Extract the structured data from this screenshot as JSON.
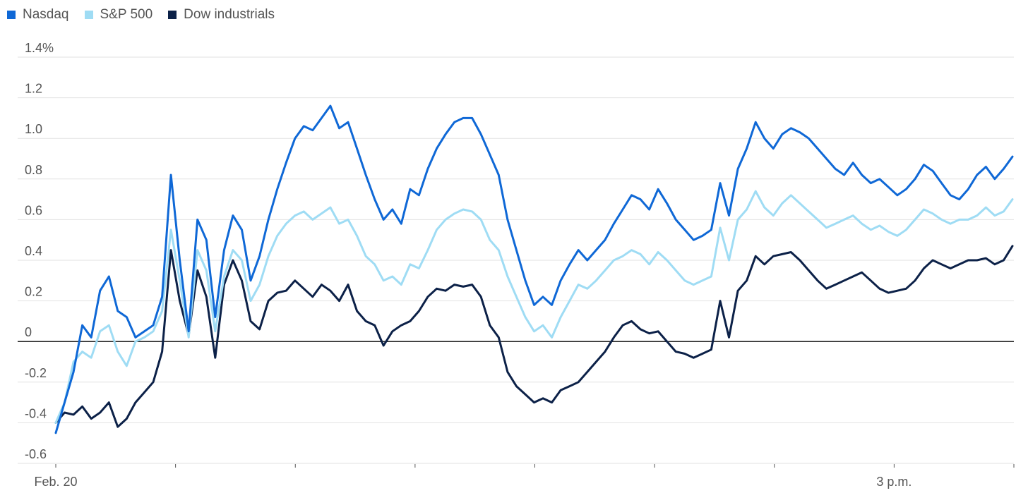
{
  "chart_data": {
    "type": "line",
    "title": "",
    "xlabel": "",
    "ylabel": "",
    "y_unit_label": "1.4%",
    "ylim": [
      -0.6,
      1.4
    ],
    "y_ticks": [
      -0.6,
      -0.4,
      -0.2,
      0,
      0.2,
      0.4,
      0.6,
      0.8,
      1.0,
      1.2,
      1.4
    ],
    "y_tick_labels": [
      "-0.6",
      "-0.4",
      "-0.2",
      "0",
      "0.2",
      "0.4",
      "0.6",
      "0.8",
      "1.0",
      "1.2",
      "1.4%"
    ],
    "x_ticks": [
      "Feb. 20",
      "",
      "",
      "",
      "",
      "",
      "",
      "3 p.m.",
      ""
    ],
    "grid": true,
    "legend_position": "top-left",
    "series": [
      {
        "name": "Nasdaq",
        "color": "#0f68d6",
        "values": [
          -0.45,
          -0.3,
          -0.15,
          0.08,
          0.02,
          0.25,
          0.32,
          0.15,
          0.12,
          0.02,
          0.05,
          0.08,
          0.22,
          0.82,
          0.4,
          0.05,
          0.6,
          0.5,
          0.12,
          0.45,
          0.62,
          0.55,
          0.3,
          0.42,
          0.6,
          0.75,
          0.88,
          1.0,
          1.06,
          1.04,
          1.1,
          1.16,
          1.05,
          1.08,
          0.95,
          0.82,
          0.7,
          0.6,
          0.65,
          0.58,
          0.75,
          0.72,
          0.85,
          0.95,
          1.02,
          1.08,
          1.1,
          1.1,
          1.02,
          0.92,
          0.82,
          0.6,
          0.45,
          0.3,
          0.18,
          0.22,
          0.18,
          0.3,
          0.38,
          0.45,
          0.4,
          0.45,
          0.5,
          0.58,
          0.65,
          0.72,
          0.7,
          0.65,
          0.75,
          0.68,
          0.6,
          0.55,
          0.5,
          0.52,
          0.55,
          0.78,
          0.62,
          0.85,
          0.95,
          1.08,
          1.0,
          0.95,
          1.02,
          1.05,
          1.03,
          1.0,
          0.95,
          0.9,
          0.85,
          0.82,
          0.88,
          0.82,
          0.78,
          0.8,
          0.76,
          0.72,
          0.75,
          0.8,
          0.87,
          0.84,
          0.78,
          0.72,
          0.7,
          0.75,
          0.82,
          0.86,
          0.8,
          0.85,
          0.91
        ]
      },
      {
        "name": "S&P 500",
        "color": "#9fdcf4",
        "values": [
          -0.4,
          -0.3,
          -0.1,
          -0.05,
          -0.08,
          0.05,
          0.08,
          -0.05,
          -0.12,
          0.0,
          0.02,
          0.05,
          0.15,
          0.55,
          0.3,
          0.02,
          0.45,
          0.35,
          0.05,
          0.32,
          0.45,
          0.4,
          0.2,
          0.28,
          0.42,
          0.52,
          0.58,
          0.62,
          0.64,
          0.6,
          0.63,
          0.66,
          0.58,
          0.6,
          0.52,
          0.42,
          0.38,
          0.3,
          0.32,
          0.28,
          0.38,
          0.36,
          0.45,
          0.55,
          0.6,
          0.63,
          0.65,
          0.64,
          0.6,
          0.5,
          0.45,
          0.32,
          0.22,
          0.12,
          0.05,
          0.08,
          0.02,
          0.12,
          0.2,
          0.28,
          0.26,
          0.3,
          0.35,
          0.4,
          0.42,
          0.45,
          0.43,
          0.38,
          0.44,
          0.4,
          0.35,
          0.3,
          0.28,
          0.3,
          0.32,
          0.56,
          0.4,
          0.6,
          0.65,
          0.74,
          0.66,
          0.62,
          0.68,
          0.72,
          0.68,
          0.64,
          0.6,
          0.56,
          0.58,
          0.6,
          0.62,
          0.58,
          0.55,
          0.57,
          0.54,
          0.52,
          0.55,
          0.6,
          0.65,
          0.63,
          0.6,
          0.58,
          0.6,
          0.6,
          0.62,
          0.66,
          0.62,
          0.64,
          0.7
        ]
      },
      {
        "name": "Dow industrials",
        "color": "#0c2148",
        "values": [
          -0.4,
          -0.35,
          -0.36,
          -0.32,
          -0.38,
          -0.35,
          -0.3,
          -0.42,
          -0.38,
          -0.3,
          -0.25,
          -0.2,
          -0.05,
          0.45,
          0.2,
          0.03,
          0.35,
          0.22,
          -0.08,
          0.28,
          0.4,
          0.3,
          0.1,
          0.06,
          0.2,
          0.24,
          0.25,
          0.3,
          0.26,
          0.22,
          0.28,
          0.25,
          0.2,
          0.28,
          0.15,
          0.1,
          0.08,
          -0.02,
          0.05,
          0.08,
          0.1,
          0.15,
          0.22,
          0.26,
          0.25,
          0.28,
          0.27,
          0.28,
          0.22,
          0.08,
          0.02,
          -0.15,
          -0.22,
          -0.26,
          -0.3,
          -0.28,
          -0.3,
          -0.24,
          -0.22,
          -0.2,
          -0.15,
          -0.1,
          -0.05,
          0.02,
          0.08,
          0.1,
          0.06,
          0.04,
          0.05,
          0.0,
          -0.05,
          -0.06,
          -0.08,
          -0.06,
          -0.04,
          0.2,
          0.02,
          0.25,
          0.3,
          0.42,
          0.38,
          0.42,
          0.43,
          0.44,
          0.4,
          0.35,
          0.3,
          0.26,
          0.28,
          0.3,
          0.32,
          0.34,
          0.3,
          0.26,
          0.24,
          0.25,
          0.26,
          0.3,
          0.36,
          0.4,
          0.38,
          0.36,
          0.38,
          0.4,
          0.4,
          0.41,
          0.38,
          0.4,
          0.47
        ]
      }
    ]
  }
}
